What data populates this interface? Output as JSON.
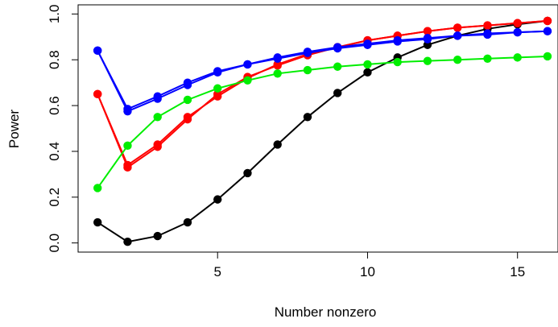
{
  "chart_data": {
    "type": "line",
    "xlabel": "Number nonzero",
    "ylabel": "Power",
    "xlim": [
      0.35,
      16.35
    ],
    "ylim": [
      -0.04,
      1.04
    ],
    "x_ticks": [
      5,
      10,
      15
    ],
    "y_ticks": [
      0.0,
      0.2,
      0.4,
      0.6,
      0.8,
      1.0
    ],
    "y_tick_labels": [
      "0.0",
      "0.2",
      "0.4",
      "0.6",
      "0.8",
      "1.0"
    ],
    "grid": false,
    "x": [
      1,
      2,
      3,
      4,
      5,
      6,
      7,
      8,
      9,
      10,
      11,
      12,
      13,
      14,
      15,
      16
    ],
    "series": [
      {
        "color": "#000000",
        "values": [
          0.09,
          0.005,
          0.03,
          0.09,
          0.19,
          0.305,
          0.43,
          0.55,
          0.655,
          0.745,
          0.81,
          0.865,
          0.905,
          0.935,
          0.955,
          0.97
        ]
      },
      {
        "color": "#ff0000",
        "values": [
          0.65,
          0.34,
          0.43,
          0.55,
          0.64,
          0.72,
          0.78,
          0.825,
          0.855,
          0.885,
          0.905,
          0.925,
          0.94,
          0.95,
          0.96,
          0.97
        ]
      },
      {
        "color": "#ff0000",
        "values": [
          0.65,
          0.33,
          0.42,
          0.54,
          0.65,
          0.725,
          0.775,
          0.82,
          0.855,
          0.885,
          0.905,
          0.925,
          0.94,
          0.95,
          0.96,
          0.97
        ]
      },
      {
        "color": "#0000ff",
        "values": [
          0.84,
          0.585,
          0.64,
          0.7,
          0.75,
          0.78,
          0.81,
          0.835,
          0.855,
          0.87,
          0.885,
          0.895,
          0.905,
          0.915,
          0.92,
          0.925
        ]
      },
      {
        "color": "#0000ff",
        "values": [
          0.84,
          0.575,
          0.63,
          0.69,
          0.745,
          0.78,
          0.805,
          0.83,
          0.85,
          0.865,
          0.88,
          0.89,
          0.905,
          0.91,
          0.92,
          0.925
        ]
      },
      {
        "color": "#00ee00",
        "values": [
          0.24,
          0.425,
          0.55,
          0.625,
          0.675,
          0.71,
          0.74,
          0.755,
          0.77,
          0.78,
          0.79,
          0.795,
          0.8,
          0.805,
          0.81,
          0.815
        ]
      }
    ]
  }
}
